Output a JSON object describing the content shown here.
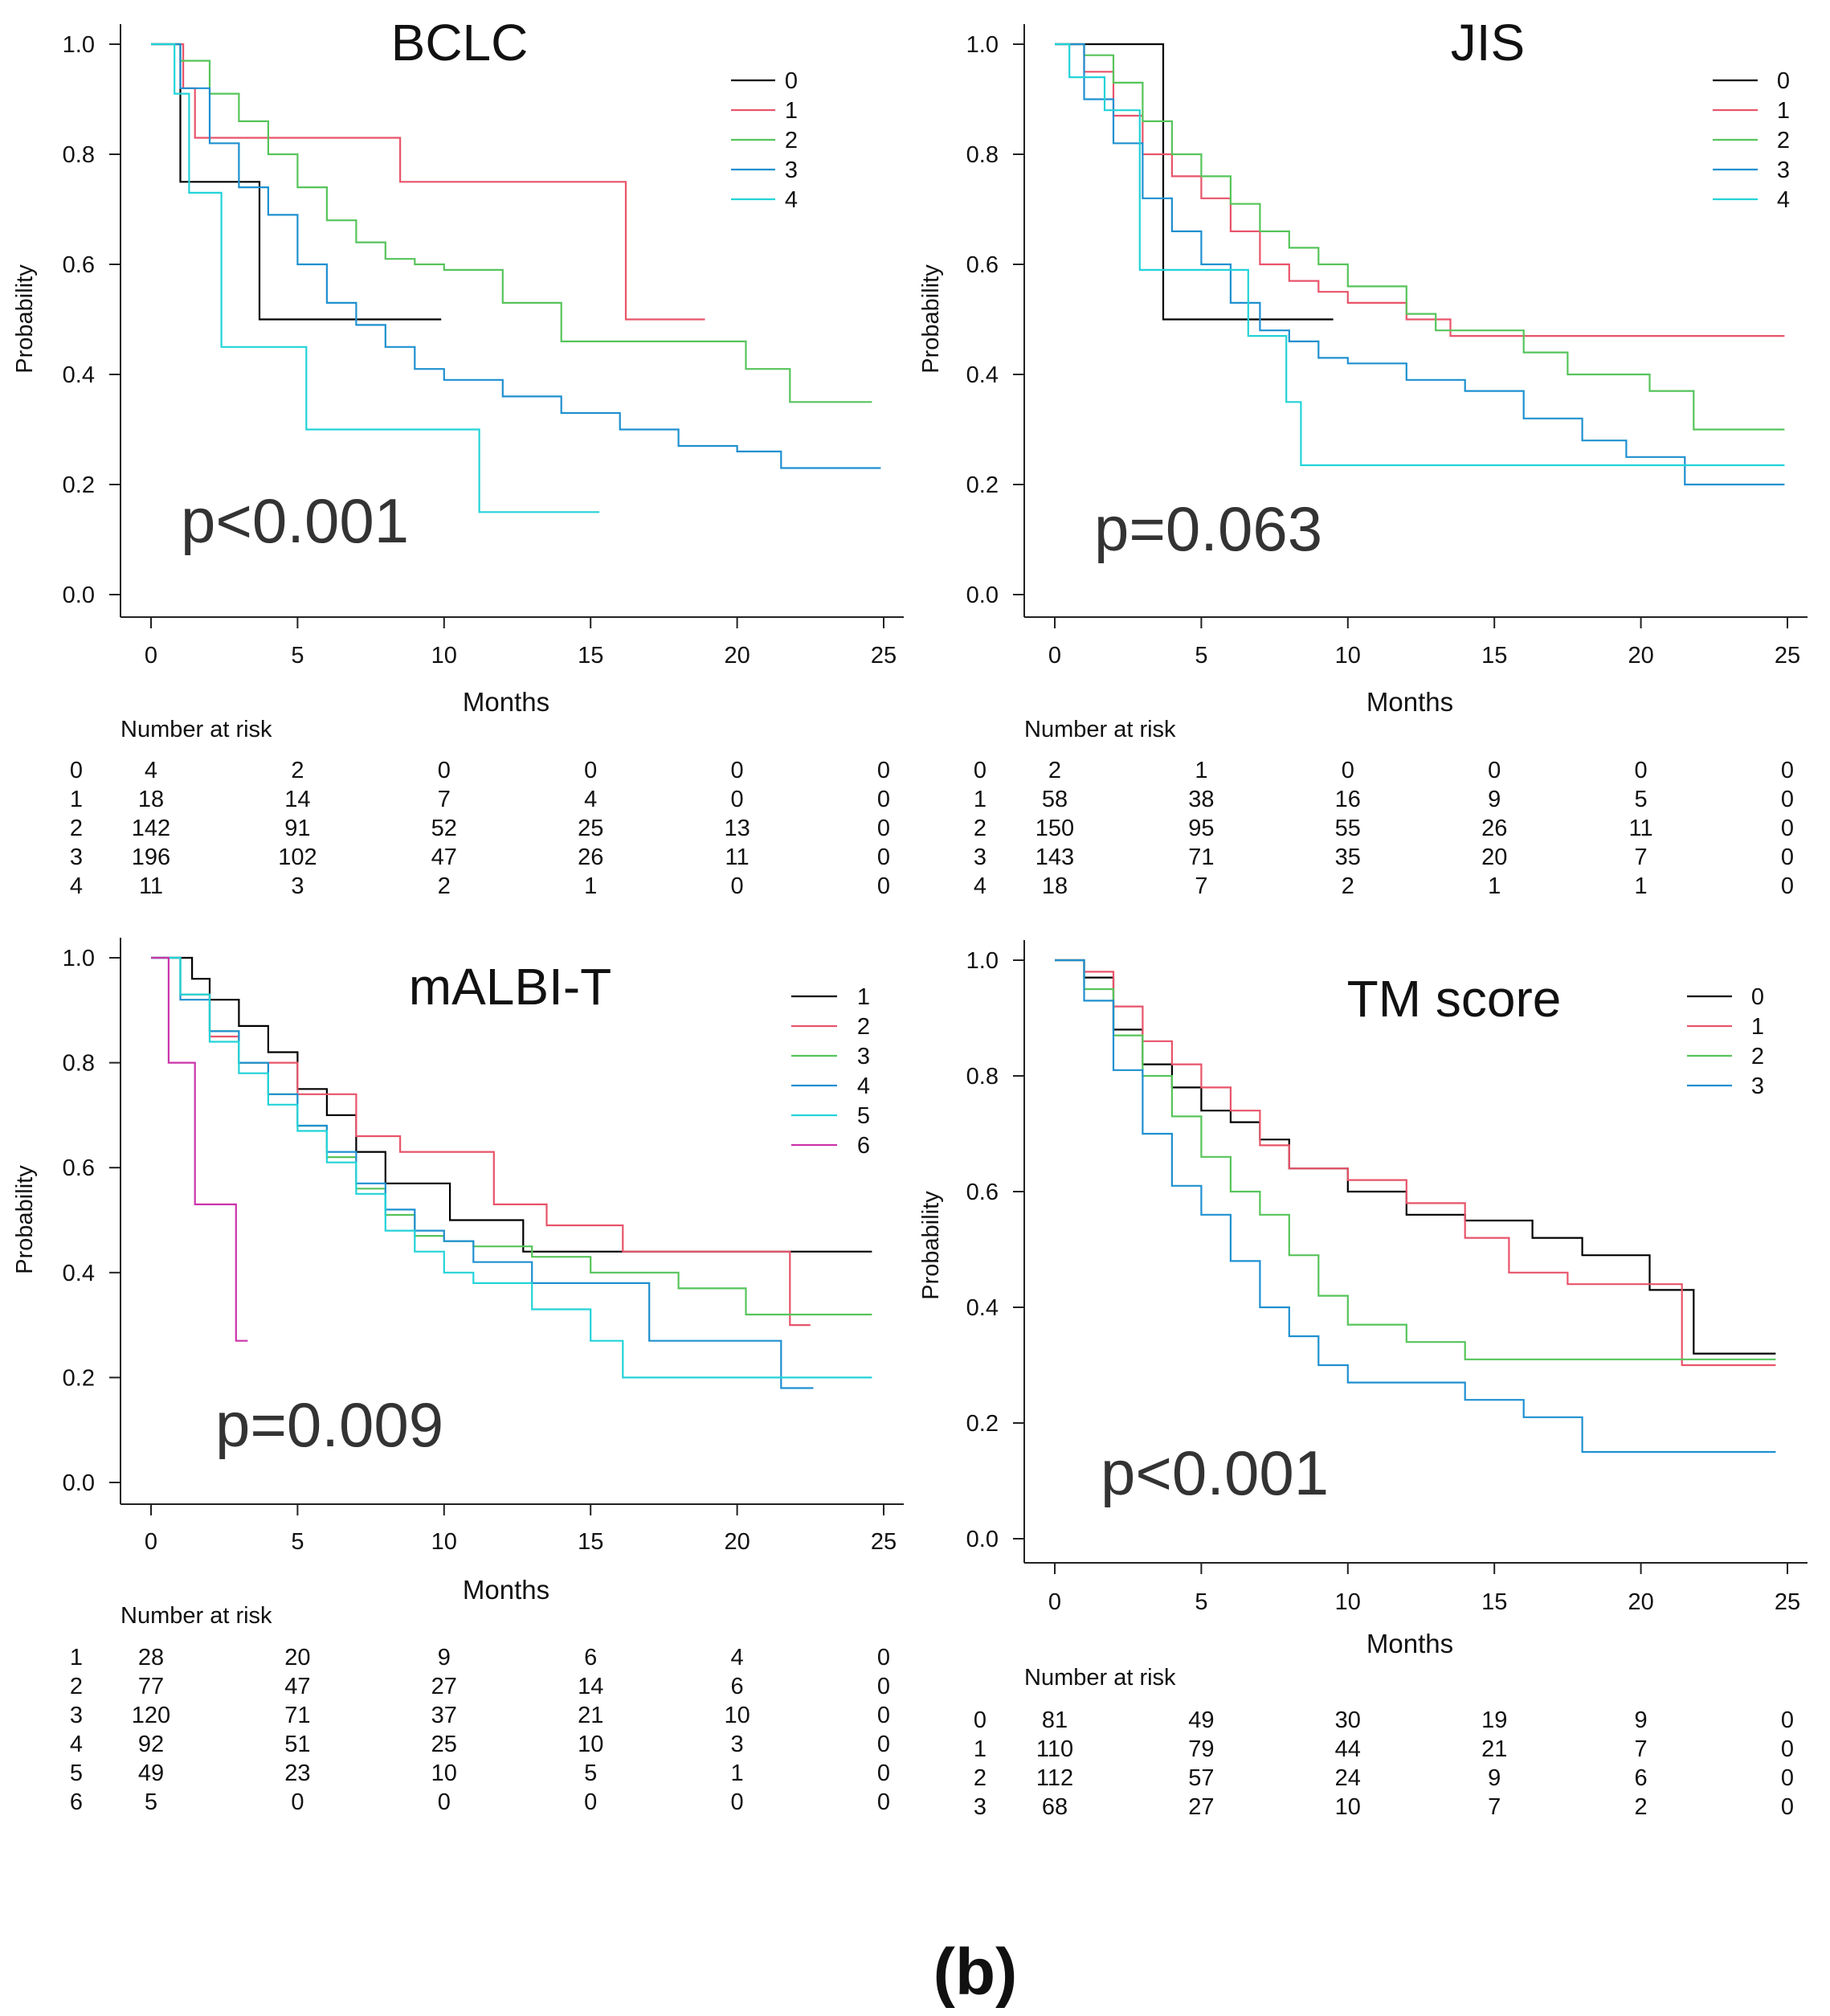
{
  "figure_caption": "(b)",
  "chart_data": [
    {
      "type": "line",
      "title": "BCLC",
      "xlabel": "Months",
      "ylabel": "Probability",
      "xlim": [
        0,
        25
      ],
      "ylim": [
        0,
        1
      ],
      "xticks": [
        "0",
        "5",
        "10",
        "15",
        "20",
        "25"
      ],
      "yticks": [
        "0.0",
        "0.2",
        "0.4",
        "0.6",
        "0.8",
        "1.0"
      ],
      "p_value": "p<0.001",
      "legend_position": "top-right",
      "risk_title": "Number at risk",
      "series": [
        {
          "name": "0",
          "color": "#000000",
          "x": [
            0,
            1,
            3.7,
            9.9
          ],
          "y": [
            1.0,
            0.75,
            0.5,
            0.5
          ]
        },
        {
          "name": "1",
          "color": "#e8546a",
          "x": [
            0,
            1.1,
            1.5,
            8.5,
            16.2,
            18.9
          ],
          "y": [
            1.0,
            0.92,
            0.83,
            0.75,
            0.5,
            0.5
          ]
        },
        {
          "name": "2",
          "color": "#56c45a",
          "x": [
            0,
            1,
            2,
            3,
            4,
            5,
            6,
            7,
            8,
            9,
            10,
            12,
            14,
            17,
            20.3,
            21.8,
            24.6
          ],
          "y": [
            1.0,
            0.97,
            0.91,
            0.86,
            0.8,
            0.74,
            0.68,
            0.64,
            0.61,
            0.6,
            0.59,
            0.53,
            0.46,
            0.46,
            0.41,
            0.35,
            0.35
          ]
        },
        {
          "name": "3",
          "color": "#1e90d0",
          "x": [
            0,
            1,
            2,
            3,
            4,
            5,
            6,
            7,
            8,
            9,
            10,
            12,
            14,
            16,
            18,
            20,
            21.5,
            24.9
          ],
          "y": [
            1.0,
            0.92,
            0.82,
            0.74,
            0.69,
            0.6,
            0.53,
            0.49,
            0.45,
            0.41,
            0.39,
            0.36,
            0.33,
            0.3,
            0.27,
            0.26,
            0.23,
            0.23
          ]
        },
        {
          "name": "4",
          "color": "#22d3d8",
          "x": [
            0,
            0.8,
            1.3,
            2.4,
            5.3,
            11.2,
            15.3
          ],
          "y": [
            1.0,
            0.91,
            0.73,
            0.45,
            0.3,
            0.15,
            0.15
          ]
        }
      ],
      "risk_table": {
        "times": [
          "0",
          "5",
          "10",
          "15",
          "20",
          "25"
        ],
        "rows": [
          {
            "group": "0",
            "counts": [
              "4",
              "2",
              "0",
              "0",
              "0",
              "0"
            ]
          },
          {
            "group": "1",
            "counts": [
              "18",
              "14",
              "7",
              "4",
              "0",
              "0"
            ]
          },
          {
            "group": "2",
            "counts": [
              "142",
              "91",
              "52",
              "25",
              "13",
              "0"
            ]
          },
          {
            "group": "3",
            "counts": [
              "196",
              "102",
              "47",
              "26",
              "11",
              "0"
            ]
          },
          {
            "group": "4",
            "counts": [
              "11",
              "3",
              "2",
              "1",
              "0",
              "0"
            ]
          }
        ]
      }
    },
    {
      "type": "line",
      "title": "JIS",
      "xlabel": "Months",
      "ylabel": "Probability",
      "xlim": [
        0,
        25
      ],
      "ylim": [
        0,
        1
      ],
      "xticks": [
        "0",
        "5",
        "10",
        "15",
        "20",
        "25"
      ],
      "yticks": [
        "0.0",
        "0.2",
        "0.4",
        "0.6",
        "0.8",
        "1.0"
      ],
      "p_value": "p=0.063",
      "legend_position": "top-right",
      "risk_title": "Number at risk",
      "series": [
        {
          "name": "0",
          "color": "#000000",
          "x": [
            0,
            3.7,
            9.5
          ],
          "y": [
            1.0,
            0.5,
            0.5
          ]
        },
        {
          "name": "1",
          "color": "#e8546a",
          "x": [
            0,
            1,
            2,
            3,
            4,
            5,
            6,
            7,
            8,
            9,
            10,
            12,
            13.5,
            24.9
          ],
          "y": [
            1.0,
            0.95,
            0.87,
            0.8,
            0.76,
            0.72,
            0.66,
            0.6,
            0.57,
            0.55,
            0.53,
            0.5,
            0.47,
            0.47
          ]
        },
        {
          "name": "2",
          "color": "#56c45a",
          "x": [
            0,
            1,
            2,
            3,
            4,
            5,
            6,
            7,
            8,
            9,
            10,
            12,
            13,
            16,
            17.5,
            20.3,
            21.8,
            24.9
          ],
          "y": [
            1.0,
            0.98,
            0.93,
            0.86,
            0.8,
            0.76,
            0.71,
            0.66,
            0.63,
            0.6,
            0.56,
            0.51,
            0.48,
            0.44,
            0.4,
            0.37,
            0.3,
            0.3
          ]
        },
        {
          "name": "3",
          "color": "#1e90d0",
          "x": [
            0,
            1,
            2,
            3,
            4,
            5,
            6,
            7,
            8,
            9,
            10,
            12,
            14,
            16,
            18,
            19.5,
            21.5,
            24.9
          ],
          "y": [
            1.0,
            0.9,
            0.82,
            0.72,
            0.66,
            0.6,
            0.53,
            0.48,
            0.46,
            0.43,
            0.42,
            0.39,
            0.37,
            0.32,
            0.28,
            0.25,
            0.2,
            0.2
          ]
        },
        {
          "name": "4",
          "color": "#22d3d8",
          "x": [
            0,
            0.5,
            1.7,
            2.9,
            6.6,
            7.9,
            8.4,
            24.9
          ],
          "y": [
            1.0,
            0.94,
            0.88,
            0.59,
            0.47,
            0.35,
            0.235,
            0.235
          ]
        }
      ],
      "risk_table": {
        "times": [
          "0",
          "5",
          "10",
          "15",
          "20",
          "25"
        ],
        "rows": [
          {
            "group": "0",
            "counts": [
              "2",
              "1",
              "0",
              "0",
              "0",
              "0"
            ]
          },
          {
            "group": "1",
            "counts": [
              "58",
              "38",
              "16",
              "9",
              "5",
              "0"
            ]
          },
          {
            "group": "2",
            "counts": [
              "150",
              "95",
              "55",
              "26",
              "11",
              "0"
            ]
          },
          {
            "group": "3",
            "counts": [
              "143",
              "71",
              "35",
              "20",
              "7",
              "0"
            ]
          },
          {
            "group": "4",
            "counts": [
              "18",
              "7",
              "2",
              "1",
              "1",
              "0"
            ]
          }
        ]
      }
    },
    {
      "type": "line",
      "title": "mALBI-T",
      "xlabel": "Months",
      "ylabel": "Probability",
      "xlim": [
        0,
        25
      ],
      "ylim": [
        0,
        1
      ],
      "xticks": [
        "0",
        "5",
        "10",
        "15",
        "20",
        "25"
      ],
      "yticks": [
        "0.0",
        "0.2",
        "0.4",
        "0.6",
        "0.8",
        "1.0"
      ],
      "p_value": "p=0.009",
      "legend_position": "top-right",
      "risk_title": "Number at risk",
      "series": [
        {
          "name": "1",
          "color": "#000000",
          "x": [
            0,
            1.4,
            2,
            3,
            4,
            5,
            6,
            7,
            8,
            10.2,
            12.7,
            24.6
          ],
          "y": [
            1.0,
            0.96,
            0.92,
            0.87,
            0.82,
            0.75,
            0.7,
            0.63,
            0.57,
            0.5,
            0.44,
            0.44
          ]
        },
        {
          "name": "2",
          "color": "#e8546a",
          "x": [
            0,
            1,
            2,
            3,
            5,
            7,
            8.5,
            11.7,
            13.5,
            16.1,
            21.8,
            22.5
          ],
          "y": [
            1.0,
            0.93,
            0.85,
            0.8,
            0.74,
            0.66,
            0.63,
            0.53,
            0.49,
            0.44,
            0.3,
            0.3
          ]
        },
        {
          "name": "3",
          "color": "#56c45a",
          "x": [
            0,
            1,
            2,
            3,
            4,
            5,
            6,
            7,
            8,
            9,
            10,
            11,
            13,
            15,
            18,
            20.3,
            24.6
          ],
          "y": [
            1.0,
            0.93,
            0.86,
            0.8,
            0.74,
            0.68,
            0.62,
            0.56,
            0.51,
            0.47,
            0.46,
            0.45,
            0.43,
            0.4,
            0.37,
            0.32,
            0.32
          ]
        },
        {
          "name": "4",
          "color": "#1e90d0",
          "x": [
            0,
            1,
            2,
            3,
            4,
            5,
            6,
            7,
            8,
            9,
            10,
            11,
            13,
            17,
            21.5,
            22.6
          ],
          "y": [
            1.0,
            0.92,
            0.86,
            0.8,
            0.74,
            0.68,
            0.63,
            0.57,
            0.52,
            0.48,
            0.46,
            0.42,
            0.38,
            0.27,
            0.18,
            0.18
          ]
        },
        {
          "name": "5",
          "color": "#22d3d8",
          "x": [
            0,
            1,
            2,
            3,
            4,
            5,
            6,
            7,
            8,
            9,
            10,
            11,
            13,
            15,
            16.1,
            24.6
          ],
          "y": [
            1.0,
            0.93,
            0.84,
            0.78,
            0.72,
            0.67,
            0.61,
            0.55,
            0.48,
            0.44,
            0.4,
            0.38,
            0.33,
            0.27,
            0.2,
            0.2
          ]
        },
        {
          "name": "6",
          "color": "#cc33aa",
          "x": [
            0,
            0.6,
            1.5,
            2.9,
            3.3
          ],
          "y": [
            1.0,
            0.8,
            0.53,
            0.27,
            0.27
          ]
        }
      ],
      "risk_table": {
        "times": [
          "0",
          "5",
          "10",
          "15",
          "20",
          "25"
        ],
        "rows": [
          {
            "group": "1",
            "counts": [
              "28",
              "20",
              "9",
              "6",
              "4",
              "0"
            ]
          },
          {
            "group": "2",
            "counts": [
              "77",
              "47",
              "27",
              "14",
              "6",
              "0"
            ]
          },
          {
            "group": "3",
            "counts": [
              "120",
              "71",
              "37",
              "21",
              "10",
              "0"
            ]
          },
          {
            "group": "4",
            "counts": [
              "92",
              "51",
              "25",
              "10",
              "3",
              "0"
            ]
          },
          {
            "group": "5",
            "counts": [
              "49",
              "23",
              "10",
              "5",
              "1",
              "0"
            ]
          },
          {
            "group": "6",
            "counts": [
              "5",
              "0",
              "0",
              "0",
              "0",
              "0"
            ]
          }
        ]
      }
    },
    {
      "type": "line",
      "title": "TM score",
      "xlabel": "Months",
      "ylabel": "Probability",
      "xlim": [
        0,
        25
      ],
      "ylim": [
        0,
        1
      ],
      "xticks": [
        "0",
        "5",
        "10",
        "15",
        "20",
        "25"
      ],
      "yticks": [
        "0.0",
        "0.2",
        "0.4",
        "0.6",
        "0.8",
        "1.0"
      ],
      "p_value": "p<0.001",
      "legend_position": "top-right",
      "risk_title": "Number at risk",
      "series": [
        {
          "name": "0",
          "color": "#000000",
          "x": [
            0,
            1,
            2,
            3,
            4,
            5,
            6,
            7,
            8,
            10,
            12,
            14,
            16.3,
            18,
            20.3,
            21.8,
            24.6
          ],
          "y": [
            1.0,
            0.97,
            0.88,
            0.82,
            0.78,
            0.74,
            0.72,
            0.69,
            0.64,
            0.6,
            0.56,
            0.55,
            0.52,
            0.49,
            0.43,
            0.32,
            0.32
          ]
        },
        {
          "name": "1",
          "color": "#e8546a",
          "x": [
            0,
            1,
            2,
            3,
            4,
            5,
            6,
            7,
            8,
            10,
            12,
            14,
            15.5,
            17.5,
            21.4,
            24.6
          ],
          "y": [
            1.0,
            0.98,
            0.92,
            0.86,
            0.82,
            0.78,
            0.74,
            0.68,
            0.64,
            0.62,
            0.58,
            0.52,
            0.46,
            0.44,
            0.3,
            0.3
          ]
        },
        {
          "name": "2",
          "color": "#56c45a",
          "x": [
            0,
            1,
            2,
            3,
            4,
            5,
            6,
            7,
            8,
            9,
            10,
            12,
            14,
            24.6
          ],
          "y": [
            1.0,
            0.95,
            0.87,
            0.8,
            0.73,
            0.66,
            0.6,
            0.56,
            0.49,
            0.42,
            0.37,
            0.34,
            0.31,
            0.31
          ]
        },
        {
          "name": "3",
          "color": "#1e90d0",
          "x": [
            0,
            1,
            2,
            3,
            4,
            5,
            6,
            7,
            8,
            9,
            10,
            12,
            14,
            16,
            18,
            24.6
          ],
          "y": [
            1.0,
            0.93,
            0.81,
            0.7,
            0.61,
            0.56,
            0.48,
            0.4,
            0.35,
            0.3,
            0.27,
            0.27,
            0.24,
            0.21,
            0.15,
            0.15
          ]
        }
      ],
      "risk_table": {
        "times": [
          "0",
          "5",
          "10",
          "15",
          "20",
          "25"
        ],
        "rows": [
          {
            "group": "0",
            "counts": [
              "81",
              "49",
              "30",
              "19",
              "9",
              "0"
            ]
          },
          {
            "group": "1",
            "counts": [
              "110",
              "79",
              "44",
              "21",
              "7",
              "0"
            ]
          },
          {
            "group": "2",
            "counts": [
              "112",
              "57",
              "24",
              "9",
              "6",
              "0"
            ]
          },
          {
            "group": "3",
            "counts": [
              "68",
              "27",
              "10",
              "7",
              "2",
              "0"
            ]
          }
        ]
      }
    }
  ]
}
